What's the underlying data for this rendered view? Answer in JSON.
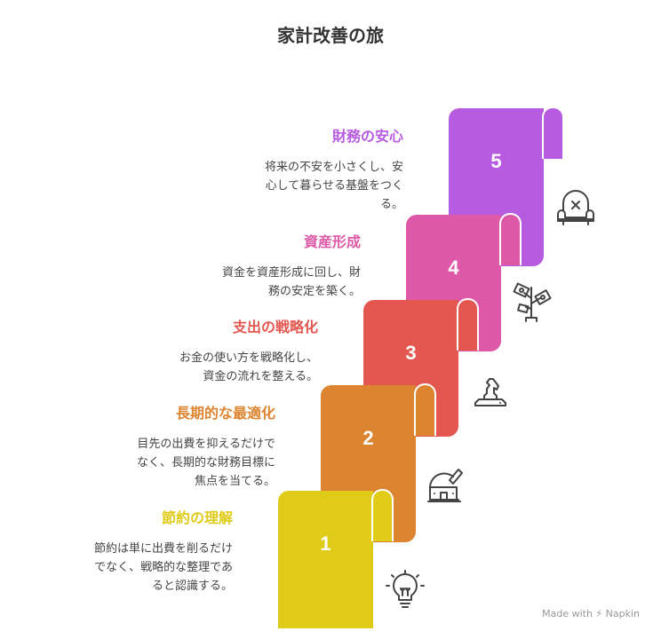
{
  "title": "家計改善の旅",
  "steps": [
    {
      "number": "1",
      "title": "節約の理解",
      "color": "#DFCB18",
      "icon": "lightbulb-icon",
      "desc": [
        "節約は単に出費を削るだけ",
        "でなく、戦略的な整理であ",
        "ると認識する。"
      ]
    },
    {
      "number": "2",
      "title": "長期的な最適化",
      "color": "#DD8430",
      "icon": "observatory-icon",
      "desc": [
        "目先の出費を抑えるだけで",
        "なく、長期的な財務目標に",
        "焦点を当てる。"
      ]
    },
    {
      "number": "3",
      "title": "支出の戦略化",
      "color": "#E45751",
      "icon": "chess-knight-icon",
      "desc": [
        "お金の使い方を戦略化し、",
        "資金の流れを整える。"
      ]
    },
    {
      "number": "4",
      "title": "資産形成",
      "color": "#DD59A7",
      "icon": "money-plant-icon",
      "desc": [
        "資金を資産形成に回し、財",
        "務の安定を築く。"
      ]
    },
    {
      "number": "5",
      "title": "財務の安心",
      "color": "#B75BE0",
      "icon": "armchair-icon",
      "desc": [
        "将来の不安を小さくし、安",
        "心して暮らせる基盤をつく",
        "る。"
      ]
    }
  ],
  "footer": "Made with ⚡ Napkin"
}
